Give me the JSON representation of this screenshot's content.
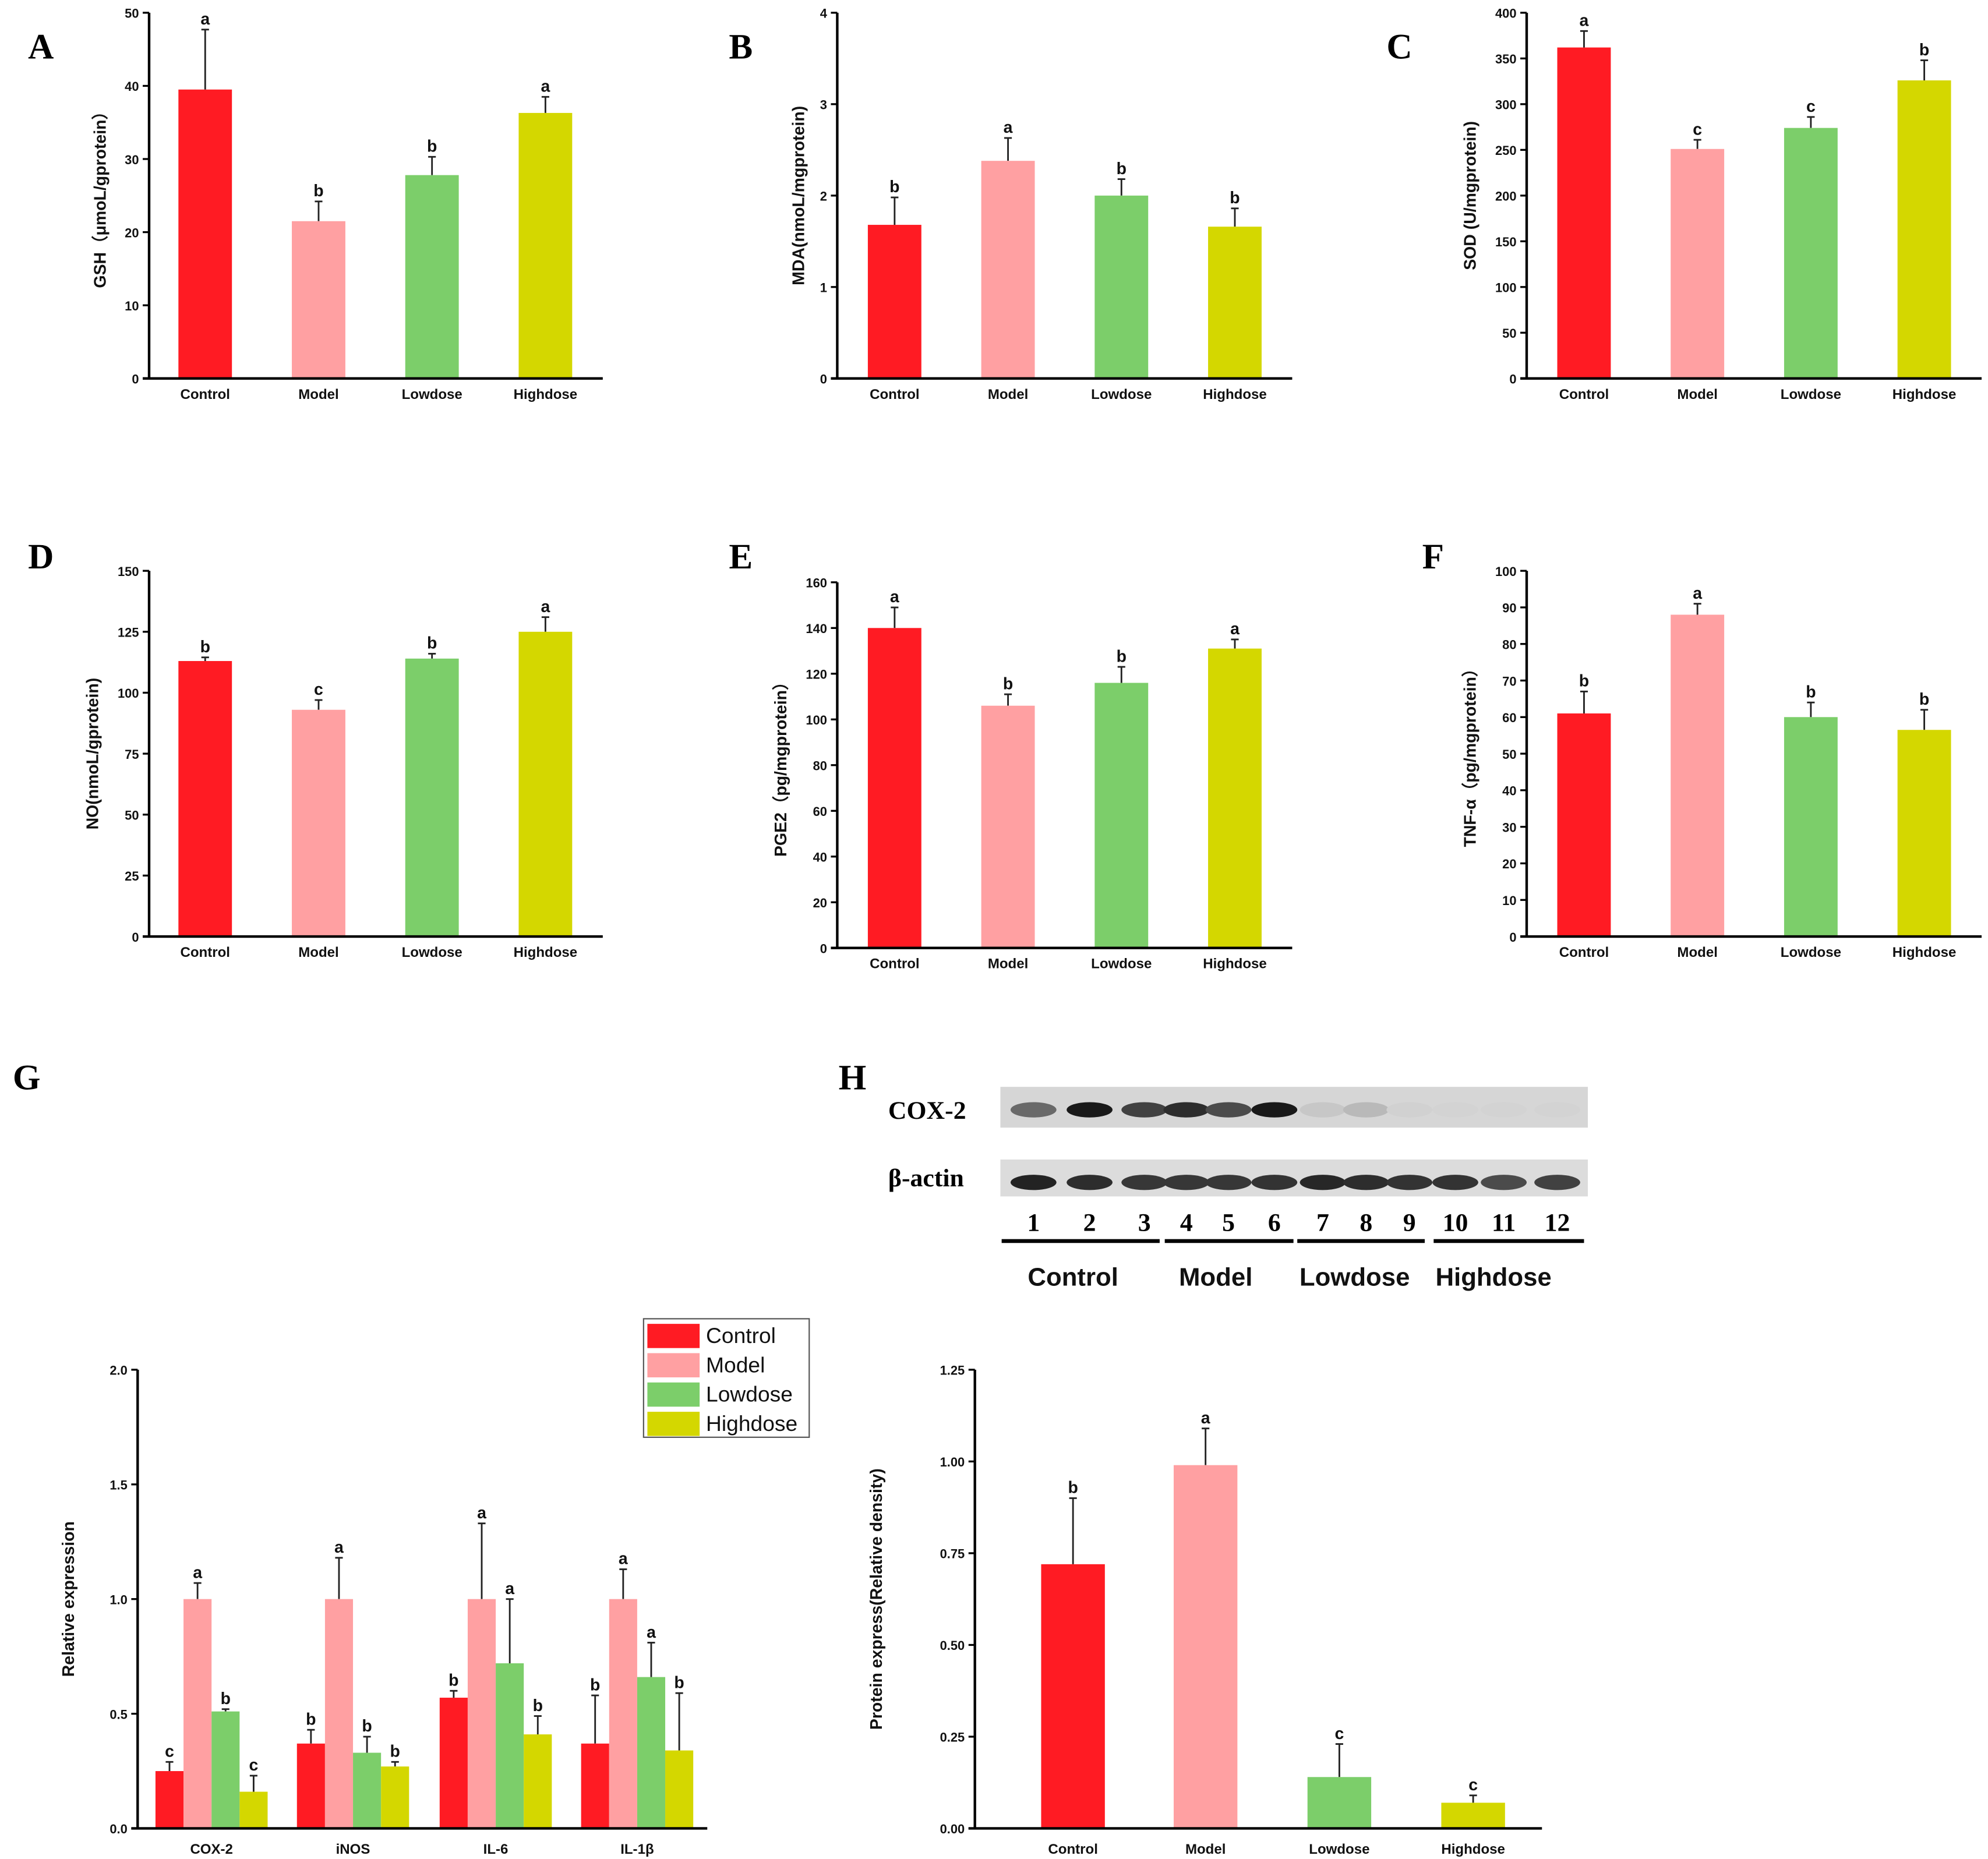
{
  "colors": {
    "Control": "#ff1b23",
    "Model": "#ffa0a2",
    "Lowdose": "#7cce6a",
    "Highdose": "#d4d700"
  },
  "panel_letters": [
    "A",
    "B",
    "C",
    "D",
    "E",
    "F",
    "G",
    "H"
  ],
  "blot": {
    "bands": [
      "COX-2",
      "β-actin"
    ],
    "lanes": [
      "1",
      "2",
      "3",
      "4",
      "5",
      "6",
      "7",
      "8",
      "9",
      "10",
      "11",
      "12"
    ],
    "groups": [
      "Control",
      "Model",
      "Lowdose",
      "Highdose"
    ],
    "cox2_intensity": [
      0.55,
      0.95,
      0.75,
      0.85,
      0.7,
      0.95,
      0.08,
      0.15,
      0.03,
      0.02,
      0.02,
      0.02
    ],
    "actin_intensity": [
      0.9,
      0.85,
      0.8,
      0.8,
      0.8,
      0.82,
      0.88,
      0.85,
      0.82,
      0.82,
      0.7,
      0.75
    ]
  },
  "chart_data": [
    {
      "type": "bar",
      "panel": "A",
      "ylabel": "GSH（μmoL/gprotein）",
      "categories": [
        "Control",
        "Model",
        "Lowdose",
        "Highdose"
      ],
      "values": [
        39.5,
        21.5,
        27.8,
        36.3
      ],
      "errors": [
        8.2,
        2.7,
        2.5,
        2.2
      ],
      "sig": [
        "a",
        "b",
        "b",
        "a"
      ],
      "ylim": [
        0,
        50
      ],
      "yticks": [
        "0",
        "10",
        "20",
        "30",
        "40",
        "50"
      ]
    },
    {
      "type": "bar",
      "panel": "B",
      "ylabel": "MDA(nmoL/mgprotein)",
      "categories": [
        "Control",
        "Model",
        "Lowdose",
        "Highdose"
      ],
      "values": [
        1.68,
        2.38,
        2.0,
        1.66
      ],
      "errors": [
        0.3,
        0.25,
        0.18,
        0.2
      ],
      "sig": [
        "b",
        "a",
        "b",
        "b"
      ],
      "ylim": [
        0,
        4
      ],
      "yticks": [
        "0",
        "1",
        "2",
        "3",
        "4"
      ]
    },
    {
      "type": "bar",
      "panel": "C",
      "ylabel": "SOD (U/mgprotein)",
      "categories": [
        "Control",
        "Model",
        "Lowdose",
        "Highdose"
      ],
      "values": [
        362,
        251,
        274,
        326
      ],
      "errors": [
        18,
        10,
        12,
        22
      ],
      "sig": [
        "a",
        "c",
        "c",
        "b"
      ],
      "ylim": [
        0,
        400
      ],
      "yticks": [
        "0",
        "50",
        "100",
        "150",
        "200",
        "250",
        "300",
        "350",
        "400"
      ]
    },
    {
      "type": "bar",
      "panel": "D",
      "ylabel": "NO(nmoL/gprotein)",
      "categories": [
        "Control",
        "Model",
        "Lowdose",
        "Highdose"
      ],
      "values": [
        113,
        93,
        114,
        125
      ],
      "errors": [
        1.5,
        4,
        2,
        6
      ],
      "sig": [
        "b",
        "c",
        "b",
        "a"
      ],
      "ylim": [
        0,
        150
      ],
      "yticks": [
        "0",
        "25",
        "50",
        "75",
        "100",
        "125",
        "150"
      ]
    },
    {
      "type": "bar",
      "panel": "E",
      "ylabel": "PGE2（pg/mgprotein）",
      "categories": [
        "Control",
        "Model",
        "Lowdose",
        "Highdose"
      ],
      "values": [
        140,
        106,
        116,
        131
      ],
      "errors": [
        9,
        5,
        7,
        4
      ],
      "sig": [
        "a",
        "b",
        "b",
        "a"
      ],
      "ylim": [
        0,
        160
      ],
      "yticks": [
        "0",
        "20",
        "40",
        "60",
        "80",
        "100",
        "120",
        "140",
        "160"
      ]
    },
    {
      "type": "bar",
      "panel": "F",
      "ylabel": "TNF-α（pg/mgprotein）",
      "categories": [
        "Control",
        "Model",
        "Lowdose",
        "Highdose"
      ],
      "values": [
        61,
        88,
        60,
        56.5
      ],
      "errors": [
        6,
        3,
        4,
        5.5
      ],
      "sig": [
        "b",
        "a",
        "b",
        "b"
      ],
      "ylim": [
        0,
        100
      ],
      "yticks": [
        "0",
        "10",
        "20",
        "30",
        "40",
        "50",
        "60",
        "70",
        "80",
        "90",
        "100"
      ]
    },
    {
      "type": "bar",
      "panel": "G",
      "ylabel": "Relative expression",
      "categories": [
        "COX-2",
        "iNOS",
        "IL-6",
        "IL-1β"
      ],
      "legend": "top-right",
      "series": [
        {
          "name": "Control",
          "values": [
            0.25,
            0.37,
            0.57,
            0.37
          ],
          "errors": [
            0.04,
            0.06,
            0.03,
            0.21
          ],
          "sig": [
            "c",
            "b",
            "b",
            "b"
          ]
        },
        {
          "name": "Model",
          "values": [
            1.0,
            1.0,
            1.0,
            1.0
          ],
          "errors": [
            0.07,
            0.18,
            0.33,
            0.13
          ],
          "sig": [
            "a",
            "a",
            "a",
            "a"
          ]
        },
        {
          "name": "Lowdose",
          "values": [
            0.51,
            0.33,
            0.72,
            0.66
          ],
          "errors": [
            0.01,
            0.07,
            0.28,
            0.15
          ],
          "sig": [
            "b",
            "b",
            "a",
            "a"
          ]
        },
        {
          "name": "Highdose",
          "values": [
            0.16,
            0.27,
            0.41,
            0.34
          ],
          "errors": [
            0.07,
            0.02,
            0.08,
            0.25
          ],
          "sig": [
            "c",
            "b",
            "b",
            "b"
          ]
        }
      ],
      "ylim": [
        0,
        2.0
      ],
      "yticks": [
        "0.0",
        "0.5",
        "1.0",
        "1.5",
        "2.0"
      ]
    },
    {
      "type": "bar",
      "panel": "H",
      "ylabel": "Protein express(Relative density)",
      "categories": [
        "Control",
        "Model",
        "Lowdose",
        "Highdose"
      ],
      "values": [
        0.72,
        0.99,
        0.14,
        0.07
      ],
      "errors": [
        0.18,
        0.1,
        0.09,
        0.02
      ],
      "sig": [
        "b",
        "a",
        "c",
        "c"
      ],
      "ylim": [
        0,
        1.25
      ],
      "yticks": [
        "0.00",
        "0.25",
        "0.50",
        "0.75",
        "1.00",
        "1.25"
      ]
    }
  ]
}
